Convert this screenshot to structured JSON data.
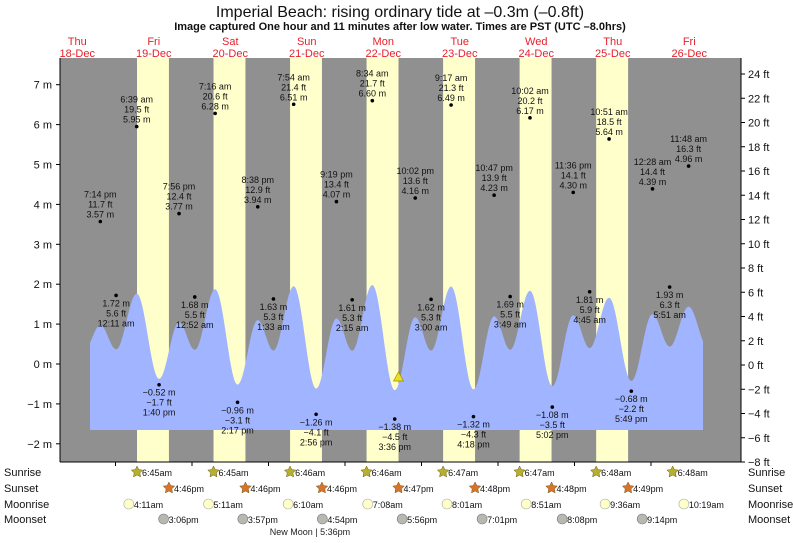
{
  "chart_data": {
    "type": "area",
    "title": "Imperial Beach: rising  ordinary tide at –0.3m (–0.8ft)",
    "subtitle": "Image captured One hour and 11 minutes after low water. Times are PST (UTC –8.0hrs)",
    "days": [
      {
        "dow": "Thu",
        "date": "18-Dec"
      },
      {
        "dow": "Fri",
        "date": "19-Dec"
      },
      {
        "dow": "Sat",
        "date": "20-Dec"
      },
      {
        "dow": "Sun",
        "date": "21-Dec"
      },
      {
        "dow": "Mon",
        "date": "22-Dec"
      },
      {
        "dow": "Tue",
        "date": "23-Dec"
      },
      {
        "dow": "Wed",
        "date": "24-Dec"
      },
      {
        "dow": "Thu",
        "date": "25-Dec"
      },
      {
        "dow": "Fri",
        "date": "26-Dec"
      }
    ],
    "y_left": {
      "unit": "m",
      "ticks": [
        "7 m",
        "6 m",
        "5 m",
        "4 m",
        "3 m",
        "2 m",
        "1 m",
        "0 m",
        "−1 m",
        "−2 m"
      ],
      "range": [
        -2.5,
        7.7
      ]
    },
    "y_right": {
      "unit": "ft",
      "ticks": [
        "24 ft",
        "22 ft",
        "20 ft",
        "18 ft",
        "16 ft",
        "14 ft",
        "12 ft",
        "10 ft",
        "8 ft",
        "6 ft",
        "4 ft",
        "2 ft",
        "0 ft",
        "−2 ft",
        "−4 ft",
        "−6 ft",
        "−8 ft"
      ]
    },
    "tide_events": [
      {
        "day": 0,
        "time": "7:14 pm",
        "ft": "11.7 ft",
        "m_label": "3.57 m",
        "m": 3.57,
        "type": "high"
      },
      {
        "day": 1,
        "time": "12:11 am",
        "ft": "5.6 ft",
        "m_label": "1.72 m",
        "m": 1.72,
        "type": "low"
      },
      {
        "day": 1,
        "time": "6:39 am",
        "ft": "19.5 ft",
        "m_label": "5.95 m",
        "m": 5.95,
        "type": "high"
      },
      {
        "day": 1,
        "time": "1:40 pm",
        "ft": "−1.7 ft",
        "m_label": "−0.52 m",
        "m": -0.52,
        "type": "low"
      },
      {
        "day": 1,
        "time": "7:56 pm",
        "ft": "12.4 ft",
        "m_label": "3.77 m",
        "m": 3.77,
        "type": "high"
      },
      {
        "day": 2,
        "time": "12:52 am",
        "ft": "5.5 ft",
        "m_label": "1.68 m",
        "m": 1.68,
        "type": "low"
      },
      {
        "day": 2,
        "time": "7:16 am",
        "ft": "20.6 ft",
        "m_label": "6.28 m",
        "m": 6.28,
        "type": "high"
      },
      {
        "day": 2,
        "time": "2:17 pm",
        "ft": "−3.1 ft",
        "m_label": "−0.96 m",
        "m": -0.96,
        "type": "low"
      },
      {
        "day": 2,
        "time": "8:38 pm",
        "ft": "12.9 ft",
        "m_label": "3.94 m",
        "m": 3.94,
        "type": "high"
      },
      {
        "day": 3,
        "time": "1:33 am",
        "ft": "5.3 ft",
        "m_label": "1.63 m",
        "m": 1.63,
        "type": "low"
      },
      {
        "day": 3,
        "time": "7:54 am",
        "ft": "21.4 ft",
        "m_label": "6.51 m",
        "m": 6.51,
        "type": "high"
      },
      {
        "day": 3,
        "time": "2:56 pm",
        "ft": "−4.1 ft",
        "m_label": "−1.26 m",
        "m": -1.26,
        "type": "low"
      },
      {
        "day": 3,
        "time": "9:19 pm",
        "ft": "13.4 ft",
        "m_label": "4.07 m",
        "m": 4.07,
        "type": "high"
      },
      {
        "day": 4,
        "time": "2:15 am",
        "ft": "5.3 ft",
        "m_label": "1.61 m",
        "m": 1.61,
        "type": "low"
      },
      {
        "day": 4,
        "time": "8:34 am",
        "ft": "21.7 ft",
        "m_label": "6.60 m",
        "m": 6.6,
        "type": "high"
      },
      {
        "day": 4,
        "time": "3:36 pm",
        "ft": "−4.5 ft",
        "m_label": "−1.38 m",
        "m": -1.38,
        "type": "low"
      },
      {
        "day": 4,
        "time": "10:02 pm",
        "ft": "13.6 ft",
        "m_label": "4.16 m",
        "m": 4.16,
        "type": "high"
      },
      {
        "day": 5,
        "time": "3:00 am",
        "ft": "5.3 ft",
        "m_label": "1.62 m",
        "m": 1.62,
        "type": "low"
      },
      {
        "day": 5,
        "time": "9:17 am",
        "ft": "21.3 ft",
        "m_label": "6.49 m",
        "m": 6.49,
        "type": "high"
      },
      {
        "day": 5,
        "time": "4:18 pm",
        "ft": "−4.3 ft",
        "m_label": "−1.32 m",
        "m": -1.32,
        "type": "low"
      },
      {
        "day": 5,
        "time": "10:47 pm",
        "ft": "13.9 ft",
        "m_label": "4.23 m",
        "m": 4.23,
        "type": "high"
      },
      {
        "day": 6,
        "time": "3:49 am",
        "ft": "5.5 ft",
        "m_label": "1.69 m",
        "m": 1.69,
        "type": "low"
      },
      {
        "day": 6,
        "time": "10:02 am",
        "ft": "20.2 ft",
        "m_label": "6.17 m",
        "m": 6.17,
        "type": "high"
      },
      {
        "day": 6,
        "time": "5:02 pm",
        "ft": "−3.5 ft",
        "m_label": "−1.08 m",
        "m": -1.08,
        "type": "low"
      },
      {
        "day": 6,
        "time": "11:36 pm",
        "ft": "14.1 ft",
        "m_label": "4.30 m",
        "m": 4.3,
        "type": "high"
      },
      {
        "day": 7,
        "time": "4:45 am",
        "ft": "5.9 ft",
        "m_label": "1.81 m",
        "m": 1.81,
        "type": "low"
      },
      {
        "day": 7,
        "time": "10:51 am",
        "ft": "18.5 ft",
        "m_label": "5.64 m",
        "m": 5.64,
        "type": "high"
      },
      {
        "day": 7,
        "time": "5:49 pm",
        "ft": "−2.2 ft",
        "m_label": "−0.68 m",
        "m": -0.68,
        "type": "low"
      },
      {
        "day": 8,
        "time": "12:28 am",
        "ft": "14.4 ft",
        "m_label": "4.39 m",
        "m": 4.39,
        "type": "high"
      },
      {
        "day": 8,
        "time": "5:51 am",
        "ft": "6.3 ft",
        "m_label": "1.93 m",
        "m": 1.93,
        "type": "low"
      },
      {
        "day": 8,
        "time": "11:48 am",
        "ft": "16.3 ft",
        "m_label": "4.96 m",
        "m": 4.96,
        "type": "high"
      }
    ],
    "current": {
      "day": 4,
      "time": "4:47 pm",
      "m": -0.3
    },
    "colors": {
      "tide": "#a0b4ff",
      "day": "#ffffcc",
      "night": "#909090",
      "day_label": "#e8202a",
      "sunrise": "#b5b030",
      "sunset": "#d8742a",
      "moonrise": "#ffffc8",
      "moonset": "#b8b8b0",
      "marker": "#e8e020"
    }
  },
  "almanac": {
    "labels": {
      "sunrise": "Sunrise",
      "sunset": "Sunset",
      "moonrise": "Moonrise",
      "moonset": "Moonset"
    },
    "sunrise": [
      {
        "day": 1,
        "time": "6:45am"
      },
      {
        "day": 2,
        "time": "6:45am"
      },
      {
        "day": 3,
        "time": "6:46am"
      },
      {
        "day": 4,
        "time": "6:46am"
      },
      {
        "day": 5,
        "time": "6:47am"
      },
      {
        "day": 6,
        "time": "6:47am"
      },
      {
        "day": 7,
        "time": "6:48am"
      },
      {
        "day": 8,
        "time": "6:48am"
      }
    ],
    "sunset": [
      {
        "day": 1,
        "time": "4:46pm"
      },
      {
        "day": 2,
        "time": "4:46pm"
      },
      {
        "day": 3,
        "time": "4:46pm"
      },
      {
        "day": 4,
        "time": "4:47pm"
      },
      {
        "day": 5,
        "time": "4:48pm"
      },
      {
        "day": 6,
        "time": "4:48pm"
      },
      {
        "day": 7,
        "time": "4:49pm"
      }
    ],
    "moonrise": [
      {
        "day": 1,
        "time": "4:11am"
      },
      {
        "day": 2,
        "time": "5:11am"
      },
      {
        "day": 3,
        "time": "6:10am"
      },
      {
        "day": 4,
        "time": "7:08am"
      },
      {
        "day": 5,
        "time": "8:01am"
      },
      {
        "day": 6,
        "time": "8:51am"
      },
      {
        "day": 7,
        "time": "9:36am"
      },
      {
        "day": 8,
        "time": "10:19am"
      }
    ],
    "moonset": [
      {
        "day": 1,
        "time": "3:06pm"
      },
      {
        "day": 2,
        "time": "3:57pm"
      },
      {
        "day": 3,
        "time": "4:54pm"
      },
      {
        "day": 4,
        "time": "5:56pm"
      },
      {
        "day": 5,
        "time": "7:01pm"
      },
      {
        "day": 6,
        "time": "8:08pm"
      },
      {
        "day": 7,
        "time": "9:14pm"
      }
    ],
    "moon_phase": "New Moon | 5:36pm"
  }
}
